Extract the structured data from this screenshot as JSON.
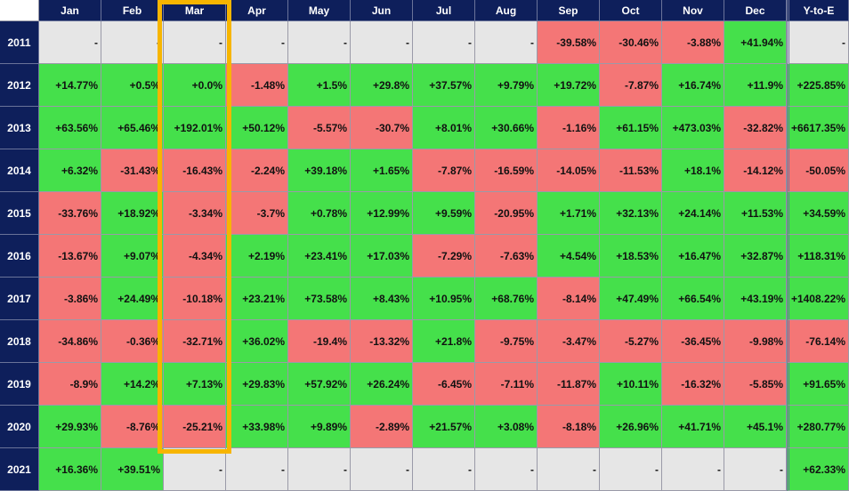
{
  "table": {
    "columns": [
      "Jan",
      "Feb",
      "Mar",
      "Apr",
      "May",
      "Jun",
      "Jul",
      "Aug",
      "Sep",
      "Oct",
      "Nov",
      "Dec",
      "Y-to-E"
    ],
    "rows": [
      {
        "year": "2011",
        "cells": [
          "-",
          "-",
          "-",
          "-",
          "-",
          "-",
          "-",
          "-",
          "-39.58%",
          "-30.46%",
          "-3.88%",
          "+41.94%",
          "-"
        ]
      },
      {
        "year": "2012",
        "cells": [
          "+14.77%",
          "+0.5%",
          "+0.0%",
          "-1.48%",
          "+1.5%",
          "+29.8%",
          "+37.57%",
          "+9.79%",
          "+19.72%",
          "-7.87%",
          "+16.74%",
          "+11.9%",
          "+225.85%"
        ]
      },
      {
        "year": "2013",
        "cells": [
          "+63.56%",
          "+65.46%",
          "+192.01%",
          "+50.12%",
          "-5.57%",
          "-30.7%",
          "+8.01%",
          "+30.66%",
          "-1.16%",
          "+61.15%",
          "+473.03%",
          "-32.82%",
          "+6617.35%"
        ]
      },
      {
        "year": "2014",
        "cells": [
          "+6.32%",
          "-31.43%",
          "-16.43%",
          "-2.24%",
          "+39.18%",
          "+1.65%",
          "-7.87%",
          "-16.59%",
          "-14.05%",
          "-11.53%",
          "+18.1%",
          "-14.12%",
          "-50.05%"
        ]
      },
      {
        "year": "2015",
        "cells": [
          "-33.76%",
          "+18.92%",
          "-3.34%",
          "-3.7%",
          "+0.78%",
          "+12.99%",
          "+9.59%",
          "-20.95%",
          "+1.71%",
          "+32.13%",
          "+24.14%",
          "+11.53%",
          "+34.59%"
        ]
      },
      {
        "year": "2016",
        "cells": [
          "-13.67%",
          "+9.07%",
          "-4.34%",
          "+2.19%",
          "+23.41%",
          "+17.03%",
          "-7.29%",
          "-7.63%",
          "+4.54%",
          "+18.53%",
          "+16.47%",
          "+32.87%",
          "+118.31%"
        ]
      },
      {
        "year": "2017",
        "cells": [
          "-3.86%",
          "+24.49%",
          "-10.18%",
          "+23.21%",
          "+73.58%",
          "+8.43%",
          "+10.95%",
          "+68.76%",
          "-8.14%",
          "+47.49%",
          "+66.54%",
          "+43.19%",
          "+1408.22%"
        ]
      },
      {
        "year": "2018",
        "cells": [
          "-34.86%",
          "-0.36%",
          "-32.71%",
          "+36.02%",
          "-19.4%",
          "-13.32%",
          "+21.8%",
          "-9.75%",
          "-3.47%",
          "-5.27%",
          "-36.45%",
          "-9.98%",
          "-76.14%"
        ]
      },
      {
        "year": "2019",
        "cells": [
          "-8.9%",
          "+14.2%",
          "+7.13%",
          "+29.83%",
          "+57.92%",
          "+26.24%",
          "-6.45%",
          "-7.11%",
          "-11.87%",
          "+10.11%",
          "-16.32%",
          "-5.85%",
          "+91.65%"
        ]
      },
      {
        "year": "2020",
        "cells": [
          "+29.93%",
          "-8.76%",
          "-25.21%",
          "+33.98%",
          "+9.89%",
          "-2.89%",
          "+21.57%",
          "+3.08%",
          "-8.18%",
          "+26.96%",
          "+41.71%",
          "+45.1%",
          "+280.77%"
        ]
      },
      {
        "year": "2021",
        "cells": [
          "+16.36%",
          "+39.51%",
          "-",
          "-",
          "-",
          "-",
          "-",
          "-",
          "-",
          "-",
          "-",
          "-",
          "+62.33%"
        ]
      }
    ]
  }
}
